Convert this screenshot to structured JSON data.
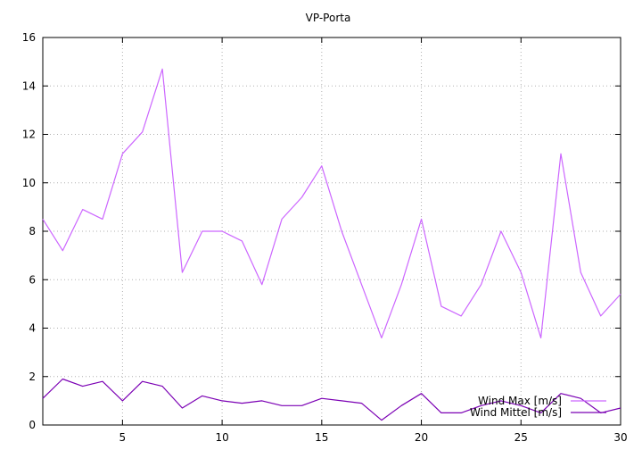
{
  "chart_data": {
    "type": "line",
    "title": "VP-Porta",
    "xlabel": "",
    "ylabel": "",
    "xlim": [
      1,
      30
    ],
    "ylim": [
      0,
      16
    ],
    "xticks": [
      5,
      10,
      15,
      20,
      25,
      30
    ],
    "yticks": [
      0,
      2,
      4,
      6,
      8,
      10,
      12,
      14,
      16
    ],
    "grid": true,
    "legend_position": "bottom-right",
    "x": [
      1,
      2,
      3,
      4,
      5,
      6,
      7,
      8,
      9,
      10,
      11,
      12,
      13,
      14,
      15,
      16,
      17,
      18,
      19,
      20,
      21,
      22,
      23,
      24,
      25,
      26,
      27,
      28,
      29,
      30
    ],
    "series": [
      {
        "name": "Wind Max [m/s]",
        "color": "#cc66ff",
        "values": [
          8.5,
          7.2,
          8.9,
          8.5,
          11.2,
          12.1,
          14.7,
          6.3,
          8.0,
          8.0,
          7.6,
          5.8,
          8.5,
          9.4,
          10.7,
          8.0,
          5.8,
          3.6,
          5.8,
          8.5,
          4.9,
          4.5,
          5.8,
          8.0,
          6.3,
          3.6,
          11.2,
          6.3,
          4.5,
          5.4
        ]
      },
      {
        "name": "Wind Mittel [m/s]",
        "color": "#7b00b4",
        "values": [
          1.1,
          1.9,
          1.6,
          1.8,
          1.0,
          1.8,
          1.6,
          0.7,
          1.2,
          1.0,
          0.9,
          1.0,
          0.8,
          0.8,
          1.1,
          1.0,
          0.9,
          0.2,
          0.8,
          1.3,
          0.5,
          0.5,
          0.8,
          1.0,
          0.8,
          0.5,
          1.3,
          1.1,
          0.5,
          0.7
        ]
      }
    ]
  }
}
